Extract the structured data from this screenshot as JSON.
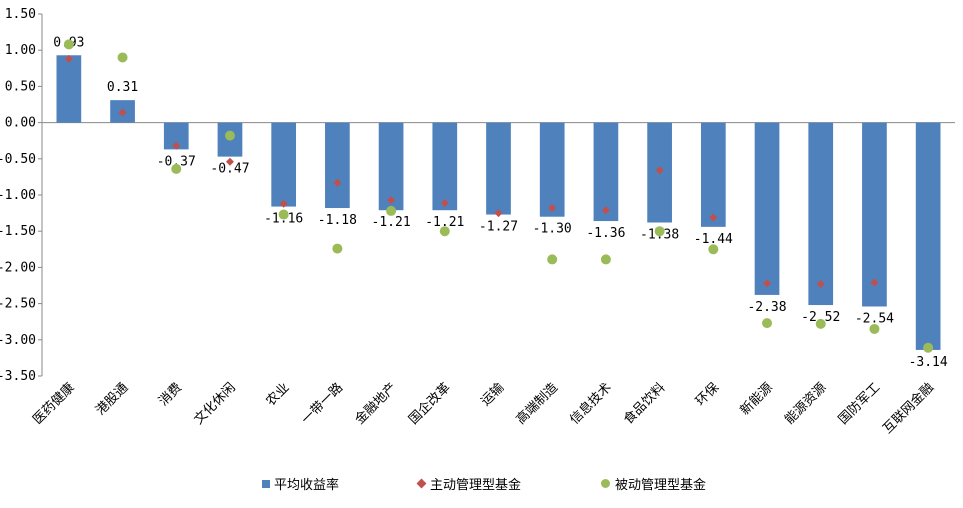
{
  "chart_data": {
    "type": "bar",
    "categories": [
      "医药健康",
      "港股通",
      "消费",
      "文化休闲",
      "农业",
      "一带一路",
      "金融地产",
      "国企改革",
      "运输",
      "高端制造",
      "信息技术",
      "食品饮料",
      "环保",
      "新能源",
      "能源资源",
      "国防军工",
      "互联网金融"
    ],
    "series": [
      {
        "name": "平均收益率",
        "kind": "bar",
        "color": "#4f81bd",
        "values": [
          0.93,
          0.31,
          -0.37,
          -0.47,
          -1.16,
          -1.18,
          -1.21,
          -1.21,
          -1.27,
          -1.3,
          -1.36,
          -1.38,
          -1.44,
          -2.38,
          -2.52,
          -2.54,
          -3.14
        ],
        "labels": [
          "0.93",
          "0.31",
          "-0.37",
          "-0.47",
          "-1.16",
          "-1.18",
          "-1.21",
          "-1.21",
          "-1.27",
          "-1.30",
          "-1.36",
          "-1.38",
          "-1.44",
          "-2.38",
          "-2.52",
          "-2.54",
          "-3.14"
        ]
      },
      {
        "name": "主动管理型基金",
        "kind": "diamond",
        "color": "#c0504d",
        "values": [
          0.88,
          0.14,
          -0.32,
          -0.54,
          -1.12,
          -0.83,
          -1.07,
          -1.11,
          -1.25,
          -1.18,
          -1.21,
          -0.66,
          -1.31,
          -2.22,
          -2.23,
          -2.21,
          null
        ]
      },
      {
        "name": "被动管理型基金",
        "kind": "dot",
        "color": "#9bbb59",
        "values": [
          1.08,
          0.9,
          -0.64,
          -0.18,
          -1.27,
          -1.74,
          -1.22,
          -1.5,
          null,
          -1.89,
          -1.89,
          -1.5,
          -1.75,
          -2.77,
          -2.78,
          -2.85,
          -3.11
        ]
      }
    ],
    "ylim": [
      -3.5,
      1.5
    ],
    "yticks": [
      "1.50",
      "1.00",
      "0.50",
      "0.00",
      "-0.50",
      "-1.00",
      "-1.50",
      "-2.00",
      "-2.50",
      "-3.00",
      "-3.50"
    ],
    "grid": false,
    "legend_position": "bottom"
  }
}
